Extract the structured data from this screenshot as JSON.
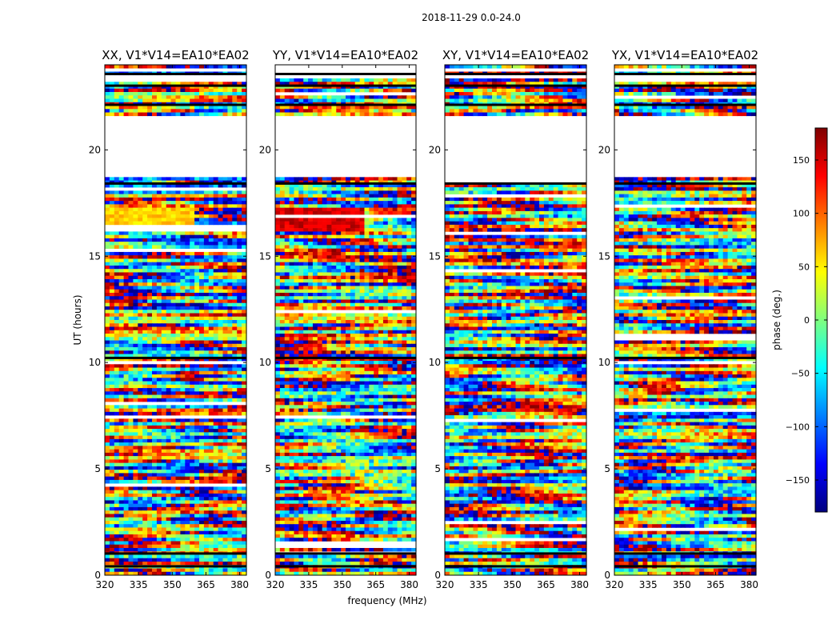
{
  "figure_title": "2018-11-29 0.0-24.0",
  "chart_data": [
    {
      "type": "heatmap",
      "title": "XX, V1*V14=EA10*EA02",
      "xlabel": "frequency (MHz)",
      "ylabel": "UT (hours)",
      "xlim": [
        320,
        383
      ],
      "ylim": [
        0,
        24
      ],
      "xticks": [
        320,
        335,
        350,
        365,
        380
      ],
      "yticks": [
        0,
        5,
        10,
        15,
        20
      ],
      "dominant_band": {
        "ut_range": [
          16.2,
          17.3
        ],
        "freq_range": [
          320,
          360
        ],
        "phase_deg": 60
      }
    },
    {
      "type": "heatmap",
      "title": "YY, V1*V14=EA10*EA02",
      "xlabel": "frequency (MHz)",
      "ylabel": "",
      "xlim": [
        320,
        383
      ],
      "ylim": [
        0,
        24
      ],
      "xticks": [
        320,
        335,
        350,
        365,
        380
      ],
      "yticks": [
        0,
        5,
        10,
        15,
        20
      ],
      "dominant_band": {
        "ut_range": [
          16.2,
          17.3
        ],
        "freq_range": [
          320,
          360
        ],
        "phase_deg": 150
      }
    },
    {
      "type": "heatmap",
      "title": "XY, V1*V14=EA10*EA02",
      "xlabel": "",
      "ylabel": "",
      "xlim": [
        320,
        383
      ],
      "ylim": [
        0,
        24
      ],
      "xticks": [
        320,
        335,
        350,
        365,
        380
      ],
      "yticks": [
        0,
        5,
        10,
        15,
        20
      ]
    },
    {
      "type": "heatmap",
      "title": "YX, V1*V14=EA10*EA02",
      "xlabel": "",
      "ylabel": "",
      "xlim": [
        320,
        383
      ],
      "ylim": [
        0,
        24
      ],
      "xticks": [
        320,
        335,
        350,
        365,
        380
      ],
      "yticks": [
        0,
        5,
        10,
        15,
        20
      ]
    }
  ],
  "flagged_ut_ranges": [
    [
      18.8,
      21.6
    ],
    [
      23.3,
      23.45
    ],
    [
      23.65,
      23.8
    ],
    [
      22.35,
      22.45
    ]
  ],
  "colorbar": {
    "label": "phase (deg.)",
    "range": [
      -180,
      180
    ],
    "ticks": [
      150,
      100,
      50,
      0,
      -50,
      -100,
      -150
    ],
    "tick_labels": [
      "150",
      "100",
      "50",
      "0",
      "−50",
      "−100",
      "−150"
    ],
    "colormap": "jet"
  }
}
